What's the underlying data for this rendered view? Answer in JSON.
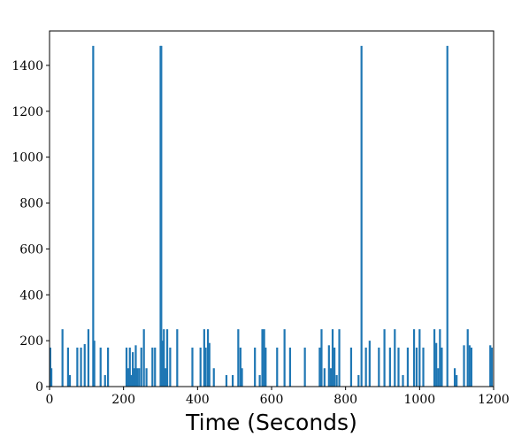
{
  "chart_data": {
    "type": "bar",
    "title": "",
    "xlabel": "Time (Seconds)",
    "ylabel": "",
    "xlim": [
      0,
      1200
    ],
    "ylim": [
      0,
      1550
    ],
    "x_ticks": [
      0,
      200,
      400,
      600,
      800,
      1000,
      1200
    ],
    "y_ticks": [
      0,
      200,
      400,
      600,
      800,
      1000,
      1200,
      1400
    ],
    "grid": false,
    "series_color": "#1f77b4",
    "bars": [
      {
        "x": 2,
        "y": 170
      },
      {
        "x": 5,
        "y": 80
      },
      {
        "x": 35,
        "y": 250
      },
      {
        "x": 50,
        "y": 170
      },
      {
        "x": 55,
        "y": 50
      },
      {
        "x": 75,
        "y": 170
      },
      {
        "x": 85,
        "y": 170
      },
      {
        "x": 95,
        "y": 185
      },
      {
        "x": 105,
        "y": 250
      },
      {
        "x": 118,
        "y": 1485
      },
      {
        "x": 121,
        "y": 200
      },
      {
        "x": 138,
        "y": 170
      },
      {
        "x": 150,
        "y": 50
      },
      {
        "x": 158,
        "y": 170
      },
      {
        "x": 208,
        "y": 170
      },
      {
        "x": 213,
        "y": 80
      },
      {
        "x": 217,
        "y": 170
      },
      {
        "x": 221,
        "y": 50
      },
      {
        "x": 225,
        "y": 150
      },
      {
        "x": 229,
        "y": 80
      },
      {
        "x": 233,
        "y": 180
      },
      {
        "x": 237,
        "y": 80
      },
      {
        "x": 242,
        "y": 80
      },
      {
        "x": 248,
        "y": 170
      },
      {
        "x": 255,
        "y": 250
      },
      {
        "x": 262,
        "y": 80
      },
      {
        "x": 278,
        "y": 170
      },
      {
        "x": 285,
        "y": 170
      },
      {
        "x": 300,
        "y": 1485
      },
      {
        "x": 302,
        "y": 1485
      },
      {
        "x": 305,
        "y": 200
      },
      {
        "x": 309,
        "y": 250
      },
      {
        "x": 313,
        "y": 80
      },
      {
        "x": 318,
        "y": 250
      },
      {
        "x": 326,
        "y": 170
      },
      {
        "x": 345,
        "y": 250
      },
      {
        "x": 386,
        "y": 170
      },
      {
        "x": 408,
        "y": 170
      },
      {
        "x": 418,
        "y": 250
      },
      {
        "x": 422,
        "y": 170
      },
      {
        "x": 428,
        "y": 250
      },
      {
        "x": 432,
        "y": 190
      },
      {
        "x": 444,
        "y": 80
      },
      {
        "x": 478,
        "y": 50
      },
      {
        "x": 495,
        "y": 50
      },
      {
        "x": 510,
        "y": 250
      },
      {
        "x": 516,
        "y": 170
      },
      {
        "x": 520,
        "y": 80
      },
      {
        "x": 555,
        "y": 170
      },
      {
        "x": 568,
        "y": 50
      },
      {
        "x": 575,
        "y": 250
      },
      {
        "x": 580,
        "y": 250
      },
      {
        "x": 584,
        "y": 170
      },
      {
        "x": 615,
        "y": 170
      },
      {
        "x": 635,
        "y": 250
      },
      {
        "x": 650,
        "y": 170
      },
      {
        "x": 690,
        "y": 170
      },
      {
        "x": 730,
        "y": 170
      },
      {
        "x": 735,
        "y": 250
      },
      {
        "x": 743,
        "y": 80
      },
      {
        "x": 755,
        "y": 180
      },
      {
        "x": 760,
        "y": 80
      },
      {
        "x": 765,
        "y": 250
      },
      {
        "x": 770,
        "y": 170
      },
      {
        "x": 776,
        "y": 50
      },
      {
        "x": 783,
        "y": 250
      },
      {
        "x": 815,
        "y": 170
      },
      {
        "x": 835,
        "y": 50
      },
      {
        "x": 843,
        "y": 1485
      },
      {
        "x": 855,
        "y": 170
      },
      {
        "x": 865,
        "y": 200
      },
      {
        "x": 890,
        "y": 170
      },
      {
        "x": 905,
        "y": 250
      },
      {
        "x": 920,
        "y": 170
      },
      {
        "x": 933,
        "y": 250
      },
      {
        "x": 943,
        "y": 170
      },
      {
        "x": 955,
        "y": 50
      },
      {
        "x": 968,
        "y": 170
      },
      {
        "x": 985,
        "y": 250
      },
      {
        "x": 992,
        "y": 170
      },
      {
        "x": 1000,
        "y": 250
      },
      {
        "x": 1010,
        "y": 170
      },
      {
        "x": 1040,
        "y": 250
      },
      {
        "x": 1045,
        "y": 190
      },
      {
        "x": 1050,
        "y": 80
      },
      {
        "x": 1055,
        "y": 250
      },
      {
        "x": 1060,
        "y": 170
      },
      {
        "x": 1075,
        "y": 1485
      },
      {
        "x": 1095,
        "y": 80
      },
      {
        "x": 1100,
        "y": 50
      },
      {
        "x": 1120,
        "y": 180
      },
      {
        "x": 1130,
        "y": 250
      },
      {
        "x": 1135,
        "y": 180
      },
      {
        "x": 1140,
        "y": 170
      },
      {
        "x": 1191,
        "y": 180
      },
      {
        "x": 1195,
        "y": 170
      }
    ]
  }
}
